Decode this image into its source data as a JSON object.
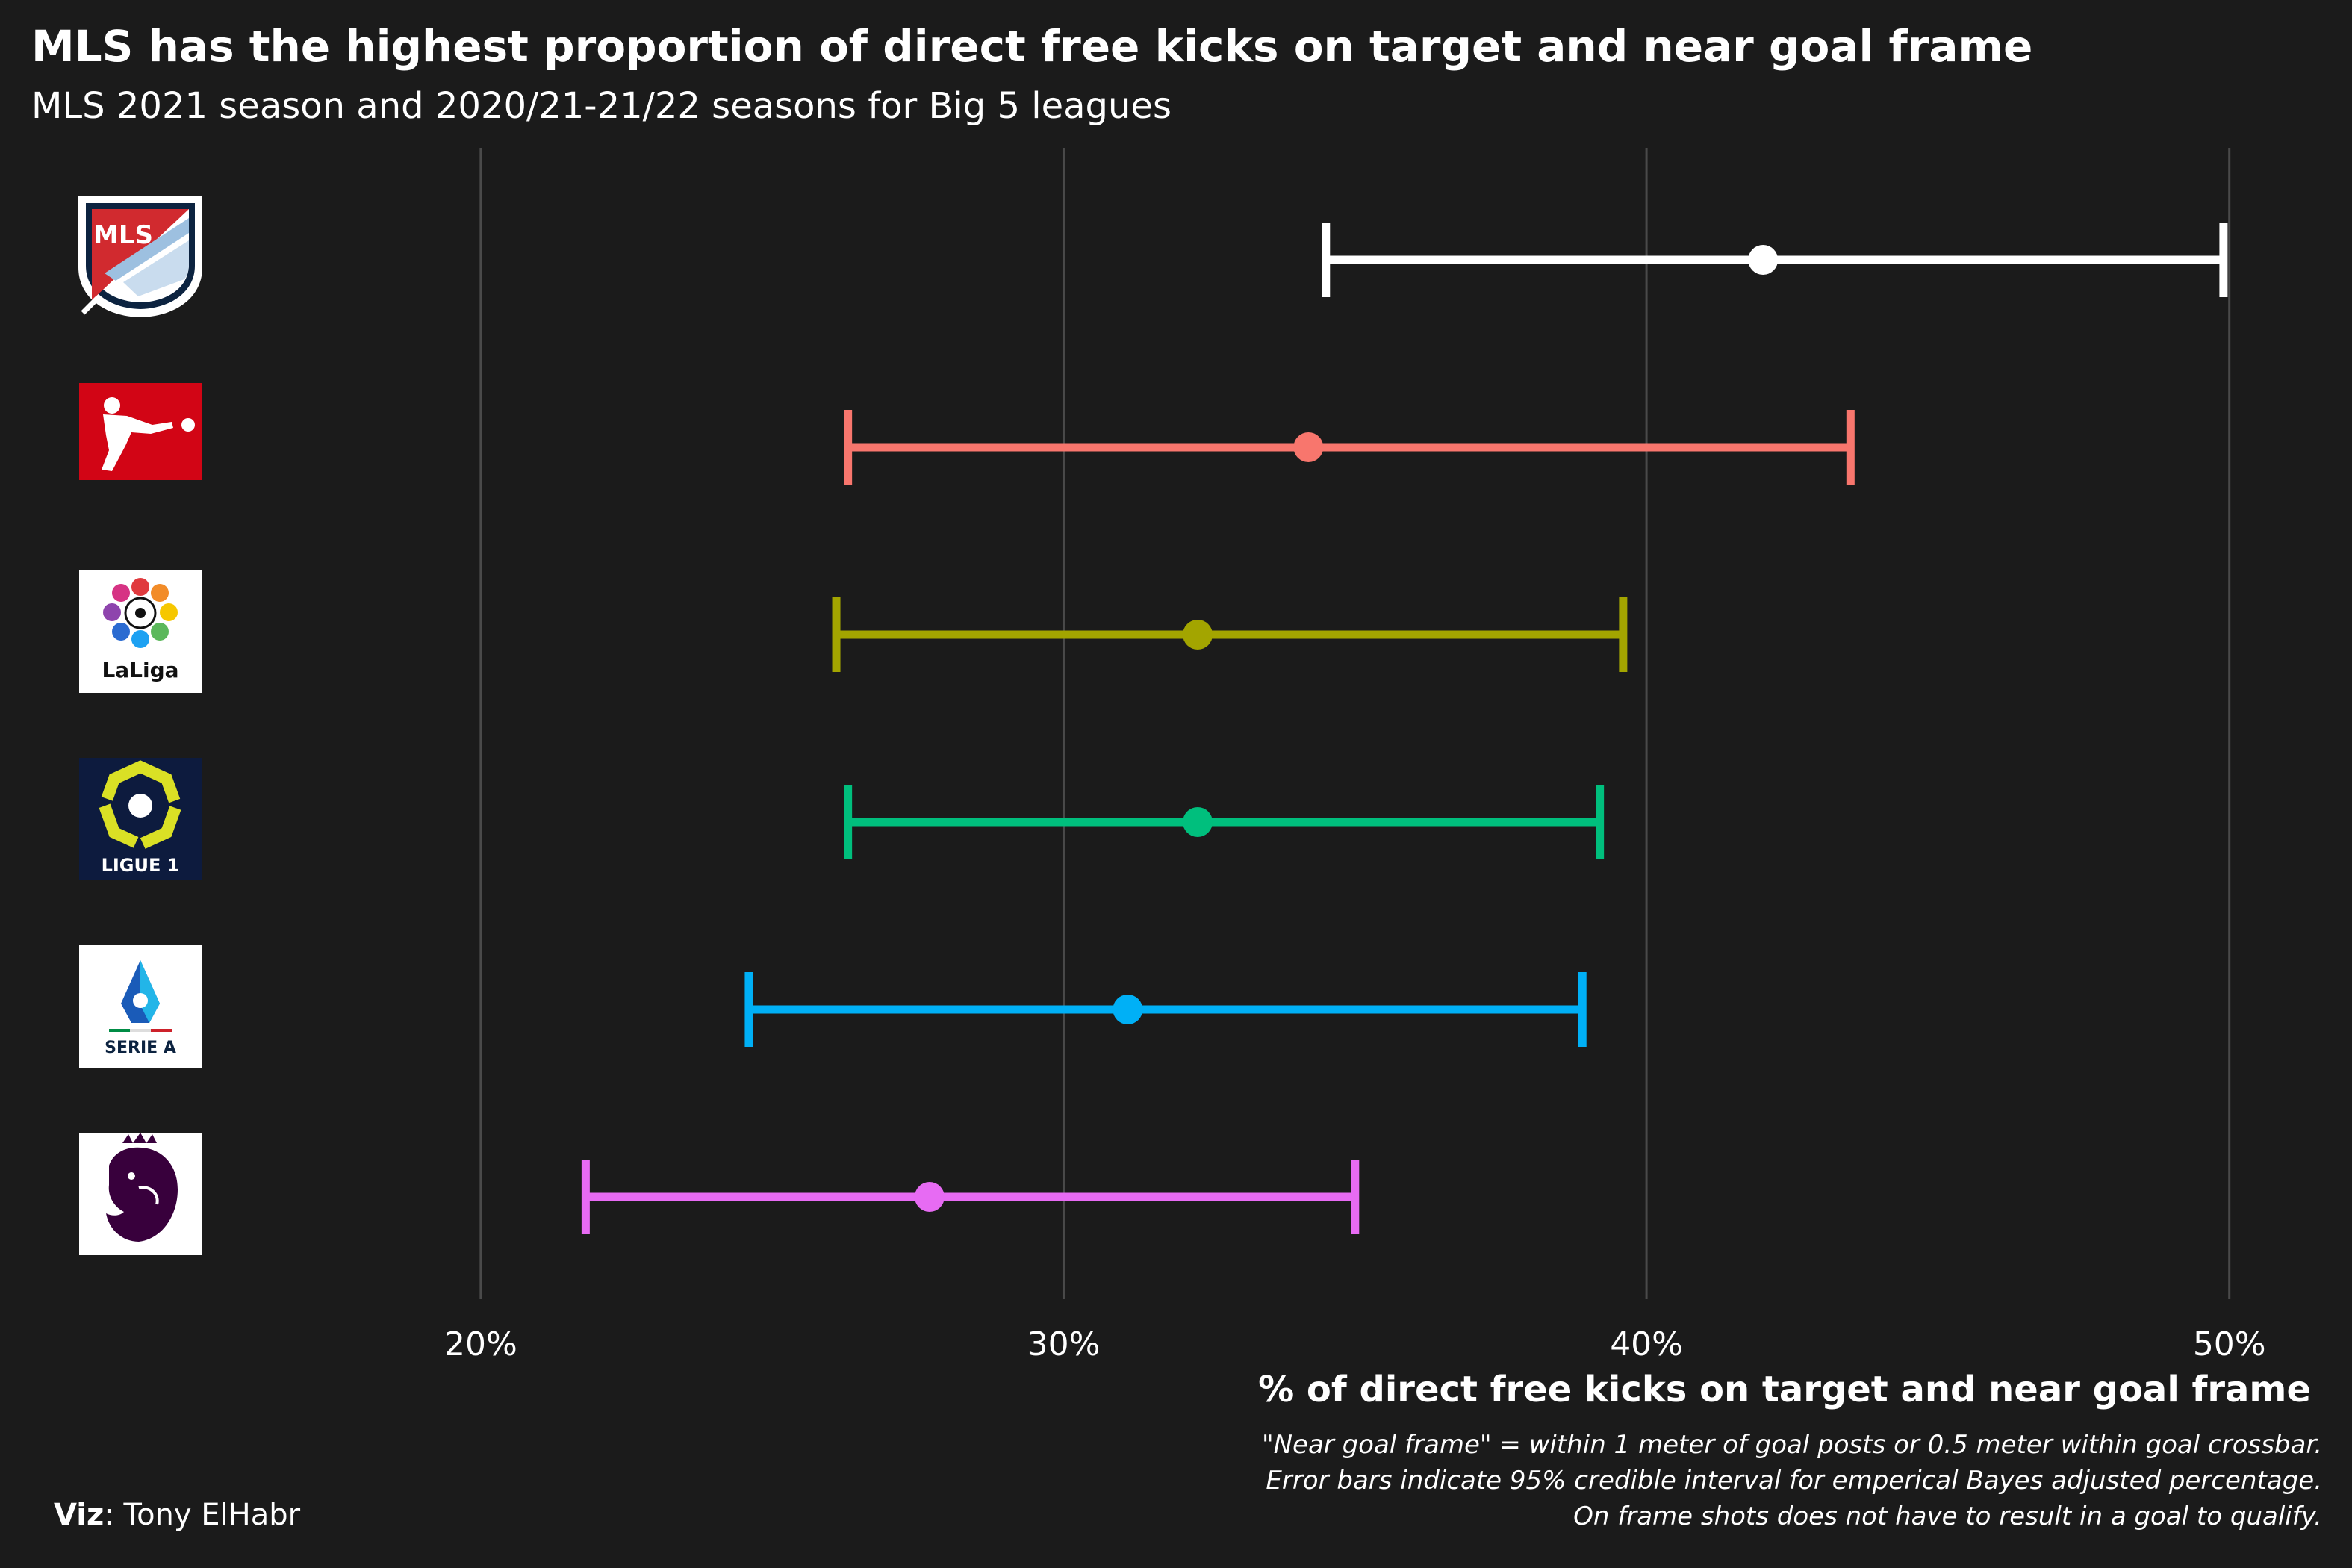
{
  "chart_data": {
    "type": "dot-errorbar",
    "title": "MLS has the highest proportion of direct free kicks on target and near goal frame",
    "subtitle": "MLS 2021 season and 2020/21-21/22 seasons for Big 5 leagues",
    "xlabel": "% of direct free kicks on target and near goal frame",
    "xlim": [
      15.8,
      51.4
    ],
    "xticks": [
      20,
      30,
      40,
      50
    ],
    "xtick_labels": [
      "20%",
      "30%",
      "40%",
      "50%"
    ],
    "grid": "vertical",
    "series": [
      {
        "league": "MLS",
        "logo_text": "MLS",
        "color": "#ffffff",
        "low": 34.5,
        "estimate": 42.0,
        "high": 49.9
      },
      {
        "league": "Bundesliga",
        "logo_text": "",
        "color": "#f8766d",
        "low": 26.3,
        "estimate": 34.2,
        "high": 43.5
      },
      {
        "league": "LaLiga",
        "logo_text": "LaLiga",
        "color": "#a3a500",
        "low": 26.1,
        "estimate": 32.3,
        "high": 39.6
      },
      {
        "league": "Ligue 1",
        "logo_text": "LIGUE 1",
        "color": "#00bf7d",
        "low": 26.3,
        "estimate": 32.3,
        "high": 39.2
      },
      {
        "league": "Serie A",
        "logo_text": "SERIE A",
        "color": "#00b0f6",
        "low": 24.6,
        "estimate": 31.1,
        "high": 38.9
      },
      {
        "league": "Premier League",
        "logo_text": "",
        "color": "#e76bf3",
        "low": 21.8,
        "estimate": 27.7,
        "high": 35.0
      }
    ]
  },
  "caption": {
    "notes": [
      "\"Near goal frame\" = within 1 meter of goal posts or 0.5 meter within goal crossbar.",
      "Error bars indicate 95% credible interval for emperical Bayes adjusted percentage.",
      "On frame shots does not have to result in a goal to qualify."
    ],
    "viz_label": "Viz",
    "viz_author": ": Tony ElHabr"
  },
  "colors": {
    "background": "#1b1b1b",
    "gridline": "#4a4a4a",
    "text": "#ffffff",
    "mls_navy": "#0c2340",
    "mls_red": "#d12a2f",
    "bundesliga_red": "#d20515",
    "ligue1_navy": "#0d1b3e",
    "ligue1_lime": "#dae025",
    "seriea_blue": "#1a5bb8",
    "pl_purple": "#38003c"
  }
}
